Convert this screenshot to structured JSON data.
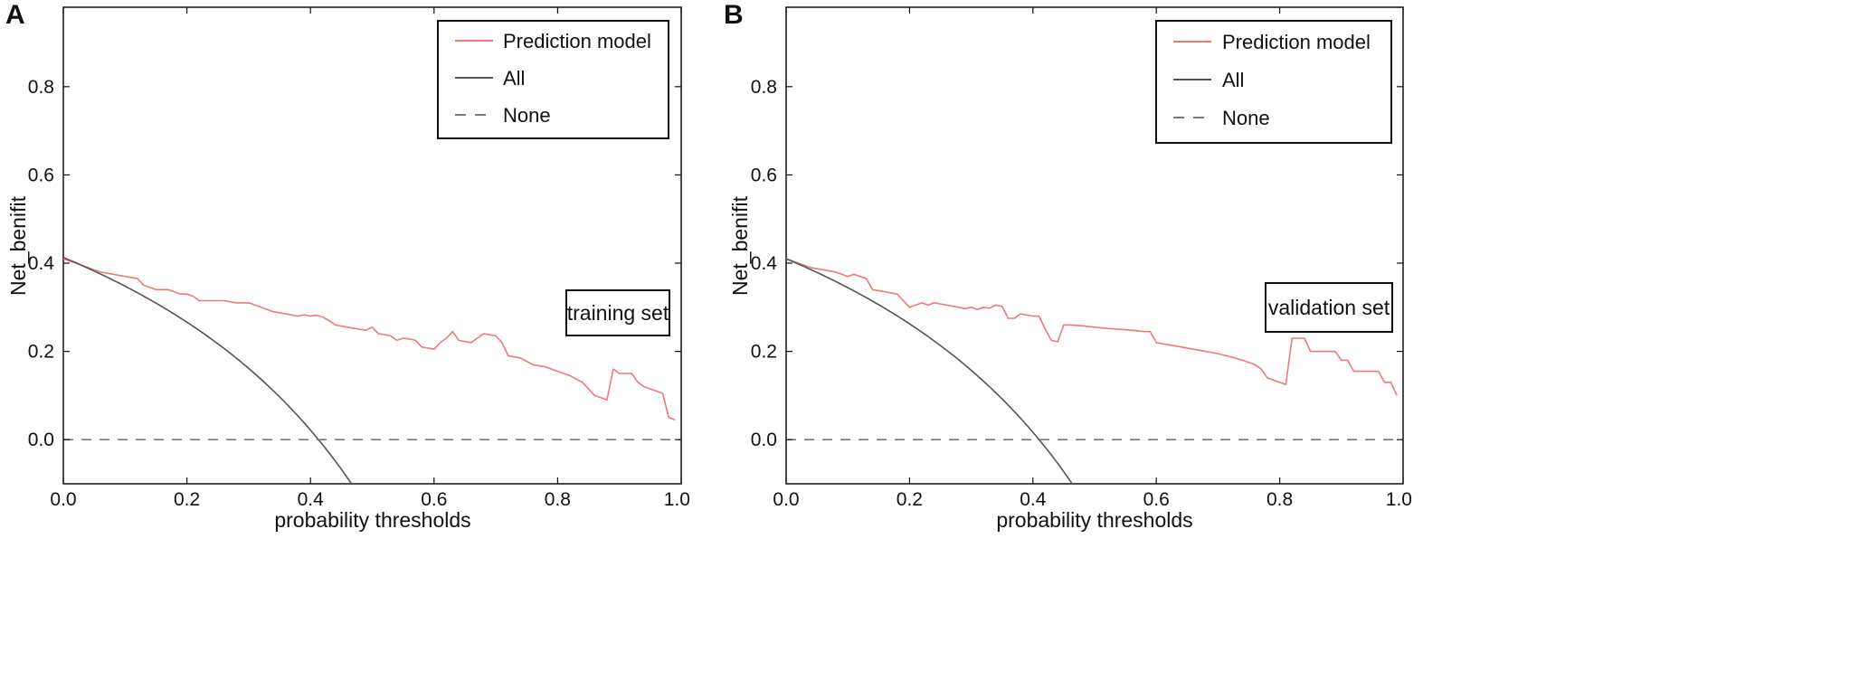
{
  "chart_data": [
    {
      "panel_label": "A",
      "type": "line",
      "xlabel": "probability thresholds",
      "ylabel": "Net_benifit",
      "xlim": [
        0.0,
        1.0
      ],
      "ylim": [
        -0.1,
        0.98
      ],
      "x_ticks": [
        0.0,
        0.2,
        0.4,
        0.6,
        0.8,
        1.0
      ],
      "x_tick_labels": [
        "0.0",
        "0.2",
        "0.4",
        "0.6",
        "0.8",
        "1.0"
      ],
      "y_ticks": [
        0.0,
        0.2,
        0.4,
        0.6,
        0.8
      ],
      "y_tick_labels": [
        "0.0",
        "0.2",
        "0.4",
        "0.6",
        "0.8"
      ],
      "annotation": "training set",
      "legend_position": "top-right",
      "legend": [
        "Prediction model",
        "All",
        "None"
      ],
      "series": [
        {
          "name": "Prediction model",
          "color": "#f07878",
          "style": "solid",
          "x": [
            0.0,
            0.02,
            0.04,
            0.06,
            0.08,
            0.1,
            0.12,
            0.13,
            0.15,
            0.17,
            0.19,
            0.2,
            0.21,
            0.22,
            0.24,
            0.26,
            0.28,
            0.3,
            0.32,
            0.34,
            0.36,
            0.38,
            0.39,
            0.4,
            0.41,
            0.42,
            0.43,
            0.44,
            0.46,
            0.48,
            0.49,
            0.5,
            0.51,
            0.52,
            0.53,
            0.54,
            0.55,
            0.56,
            0.57,
            0.58,
            0.6,
            0.61,
            0.62,
            0.63,
            0.64,
            0.66,
            0.67,
            0.68,
            0.69,
            0.7,
            0.71,
            0.72,
            0.74,
            0.76,
            0.78,
            0.8,
            0.82,
            0.84,
            0.85,
            0.86,
            0.87,
            0.88,
            0.89,
            0.9,
            0.91,
            0.92,
            0.93,
            0.94,
            0.95,
            0.96,
            0.97,
            0.98,
            0.99
          ],
          "y": [
            0.41,
            0.4,
            0.39,
            0.38,
            0.375,
            0.37,
            0.365,
            0.35,
            0.34,
            0.34,
            0.33,
            0.33,
            0.325,
            0.315,
            0.315,
            0.315,
            0.31,
            0.31,
            0.3,
            0.29,
            0.285,
            0.28,
            0.283,
            0.28,
            0.282,
            0.278,
            0.27,
            0.26,
            0.255,
            0.25,
            0.248,
            0.255,
            0.24,
            0.238,
            0.235,
            0.225,
            0.23,
            0.228,
            0.225,
            0.21,
            0.205,
            0.22,
            0.23,
            0.245,
            0.225,
            0.22,
            0.23,
            0.24,
            0.238,
            0.235,
            0.22,
            0.19,
            0.185,
            0.17,
            0.165,
            0.155,
            0.145,
            0.13,
            0.115,
            0.1,
            0.095,
            0.09,
            0.16,
            0.15,
            0.15,
            0.15,
            0.13,
            0.12,
            0.115,
            0.11,
            0.105,
            0.05,
            0.045
          ]
        },
        {
          "name": "All",
          "color": "#555555",
          "style": "solid",
          "prevalence": 0.413
        },
        {
          "name": "None",
          "color": "#777777",
          "style": "dashed",
          "y_constant": 0.0
        }
      ]
    },
    {
      "panel_label": "B",
      "type": "line",
      "xlabel": "probability thresholds",
      "ylabel": "Net_benifit",
      "xlim": [
        0.0,
        1.0
      ],
      "ylim": [
        -0.1,
        0.98
      ],
      "x_ticks": [
        0.0,
        0.2,
        0.4,
        0.6,
        0.8,
        1.0
      ],
      "x_tick_labels": [
        "0.0",
        "0.2",
        "0.4",
        "0.6",
        "0.8",
        "1.0"
      ],
      "y_ticks": [
        0.0,
        0.2,
        0.4,
        0.6,
        0.8
      ],
      "y_tick_labels": [
        "0.0",
        "0.2",
        "0.4",
        "0.6",
        "0.8"
      ],
      "annotation": "validation set",
      "legend_position": "top-right",
      "legend": [
        "Prediction model",
        "All",
        "None"
      ],
      "series": [
        {
          "name": "Prediction model",
          "color": "#f07878",
          "style": "solid",
          "x": [
            0.0,
            0.02,
            0.04,
            0.06,
            0.08,
            0.1,
            0.11,
            0.12,
            0.13,
            0.14,
            0.16,
            0.18,
            0.2,
            0.21,
            0.22,
            0.23,
            0.24,
            0.26,
            0.28,
            0.29,
            0.3,
            0.31,
            0.32,
            0.33,
            0.34,
            0.35,
            0.36,
            0.37,
            0.38,
            0.4,
            0.41,
            0.42,
            0.43,
            0.44,
            0.45,
            0.46,
            0.48,
            0.5,
            0.52,
            0.54,
            0.56,
            0.58,
            0.59,
            0.6,
            0.62,
            0.64,
            0.66,
            0.68,
            0.7,
            0.72,
            0.74,
            0.76,
            0.77,
            0.78,
            0.8,
            0.81,
            0.82,
            0.83,
            0.84,
            0.85,
            0.86,
            0.87,
            0.88,
            0.89,
            0.9,
            0.91,
            0.92,
            0.93,
            0.94,
            0.95,
            0.96,
            0.97,
            0.98,
            0.99
          ],
          "y": [
            0.41,
            0.4,
            0.39,
            0.385,
            0.38,
            0.37,
            0.375,
            0.37,
            0.365,
            0.34,
            0.335,
            0.33,
            0.3,
            0.305,
            0.31,
            0.305,
            0.31,
            0.305,
            0.3,
            0.297,
            0.3,
            0.295,
            0.3,
            0.298,
            0.305,
            0.302,
            0.275,
            0.275,
            0.285,
            0.28,
            0.28,
            0.25,
            0.225,
            0.222,
            0.26,
            0.26,
            0.258,
            0.255,
            0.252,
            0.25,
            0.248,
            0.245,
            0.245,
            0.22,
            0.215,
            0.21,
            0.205,
            0.2,
            0.195,
            0.188,
            0.18,
            0.17,
            0.16,
            0.14,
            0.13,
            0.125,
            0.23,
            0.23,
            0.23,
            0.2,
            0.2,
            0.2,
            0.2,
            0.2,
            0.18,
            0.18,
            0.155,
            0.155,
            0.155,
            0.155,
            0.155,
            0.13,
            0.13,
            0.1
          ]
        },
        {
          "name": "All",
          "color": "#555555",
          "style": "solid",
          "prevalence": 0.41
        },
        {
          "name": "None",
          "color": "#777777",
          "style": "dashed",
          "y_constant": 0.0
        }
      ]
    }
  ]
}
